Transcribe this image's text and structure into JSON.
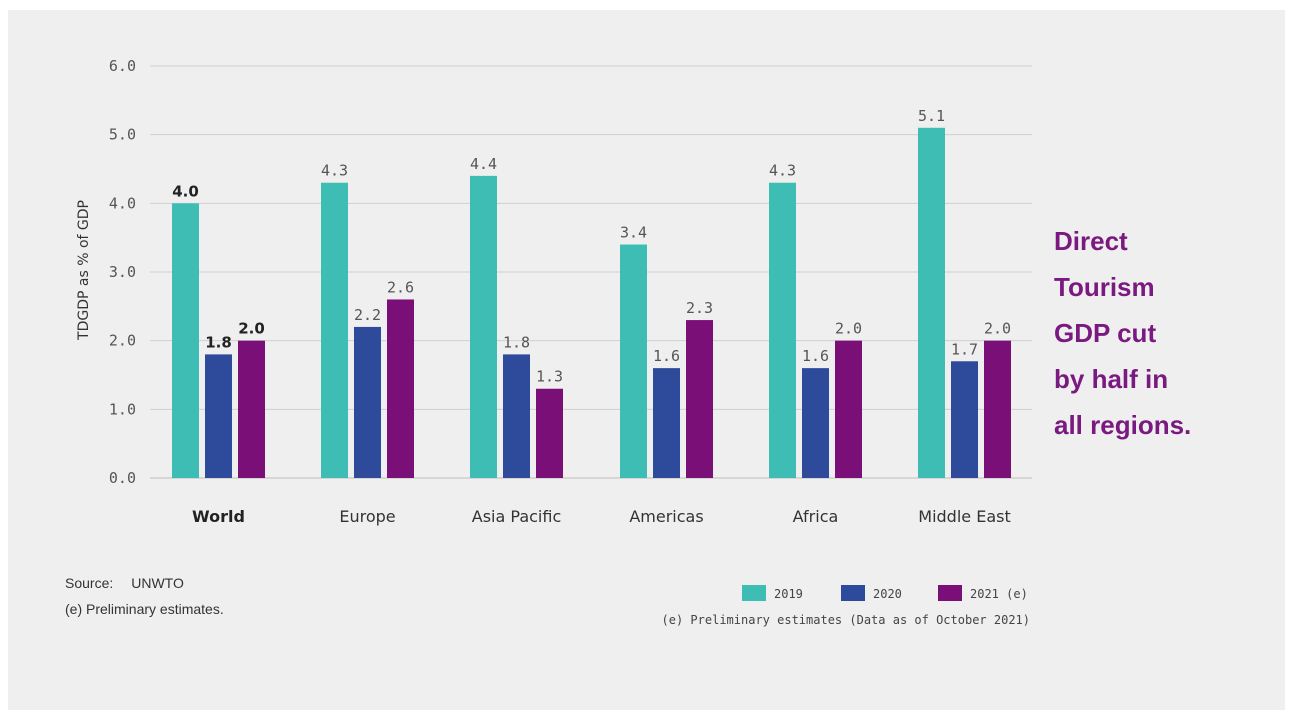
{
  "callout": {
    "lines": [
      "Direct",
      "Tourism",
      "GDP cut",
      "by half in",
      "all regions."
    ],
    "color": "#7a1a80"
  },
  "source": {
    "label": "Source:",
    "value": "UNWTO",
    "note": "(e) Preliminary estimates."
  },
  "legend_note": "(e) Preliminary estimates (Data as of October 2021)",
  "chart_data": {
    "type": "bar",
    "ylabel": "TDGDP as % of GDP",
    "ylim": [
      0,
      6
    ],
    "yticks": [
      "0.0",
      "1.0",
      "2.0",
      "3.0",
      "4.0",
      "5.0",
      "6.0"
    ],
    "grid": true,
    "legend_position": "bottom-right",
    "categories": [
      "World",
      "Europe",
      "Asia Pacific",
      "Americas",
      "Africa",
      "Middle East"
    ],
    "series": [
      {
        "name": "2019",
        "color": "#3dbdb3",
        "values": [
          4.0,
          4.3,
          4.4,
          3.4,
          4.3,
          5.1
        ],
        "labels": [
          "4.0",
          "4.3",
          "4.4",
          "3.4",
          "4.3",
          "5.1"
        ]
      },
      {
        "name": "2020",
        "color": "#2e4a9a",
        "values": [
          1.8,
          2.2,
          1.8,
          1.6,
          1.6,
          1.7
        ],
        "labels": [
          "1.8",
          "2.2",
          "1.8",
          "1.6",
          "1.6",
          "1.7"
        ]
      },
      {
        "name": "2021 (e)",
        "color": "#7a0f78",
        "values": [
          2.0,
          2.6,
          1.3,
          2.3,
          2.0,
          2.0
        ],
        "labels": [
          "2.0",
          "2.6",
          "1.3",
          "2.3",
          "2.0",
          "2.0"
        ]
      }
    ]
  }
}
